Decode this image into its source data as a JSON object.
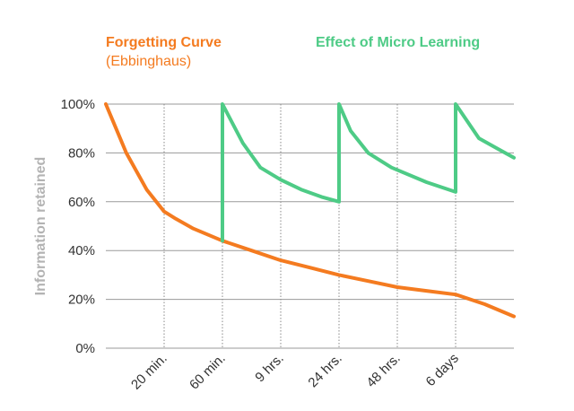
{
  "chart_data": {
    "type": "line",
    "xlabel": "",
    "ylabel": "Information retained",
    "ylim": [
      0,
      100
    ],
    "y_ticks": [
      "0%",
      "20%",
      "40%",
      "60%",
      "80%",
      "100%"
    ],
    "x_tick_labels": [
      "20 min.",
      "60 min.",
      "9 hrs.",
      "24 hrs.",
      "48 hrs.",
      "6 days"
    ],
    "grid": "horizontal solid, vertical dotted at x ticks",
    "legend": [
      {
        "title": "Forgetting Curve",
        "subtitle": "(Ebbinghaus)",
        "color": "#f47b20"
      },
      {
        "title": "Effect of Micro Learning",
        "subtitle": "",
        "color": "#4ecb86"
      }
    ],
    "x_domain": [
      0,
      7
    ],
    "series": [
      {
        "name": "Forgetting Curve",
        "color": "#f47b20",
        "points": [
          [
            0,
            100
          ],
          [
            0.35,
            80
          ],
          [
            0.7,
            65
          ],
          [
            1,
            56
          ],
          [
            1.2,
            53
          ],
          [
            1.5,
            49
          ],
          [
            2,
            44
          ],
          [
            2.5,
            40
          ],
          [
            3,
            36
          ],
          [
            3.5,
            33
          ],
          [
            4,
            30
          ],
          [
            4.5,
            27.5
          ],
          [
            5,
            25
          ],
          [
            5.5,
            23.5
          ],
          [
            6,
            22
          ],
          [
            6.5,
            18
          ],
          [
            7,
            13
          ]
        ]
      },
      {
        "name": "Effect of Micro Learning",
        "color": "#4ecb86",
        "points": [
          [
            2,
            44
          ],
          [
            2,
            100
          ],
          [
            2.35,
            84
          ],
          [
            2.65,
            74
          ],
          [
            3,
            69
          ],
          [
            3.35,
            65
          ],
          [
            3.7,
            62
          ],
          [
            4,
            60
          ],
          [
            4,
            100
          ],
          [
            4.2,
            89
          ],
          [
            4.5,
            80
          ],
          [
            4.9,
            74
          ],
          [
            5.5,
            68
          ],
          [
            6,
            64
          ],
          [
            6,
            100
          ],
          [
            6.4,
            86
          ],
          [
            6.7,
            82
          ],
          [
            7,
            78
          ]
        ]
      }
    ]
  }
}
